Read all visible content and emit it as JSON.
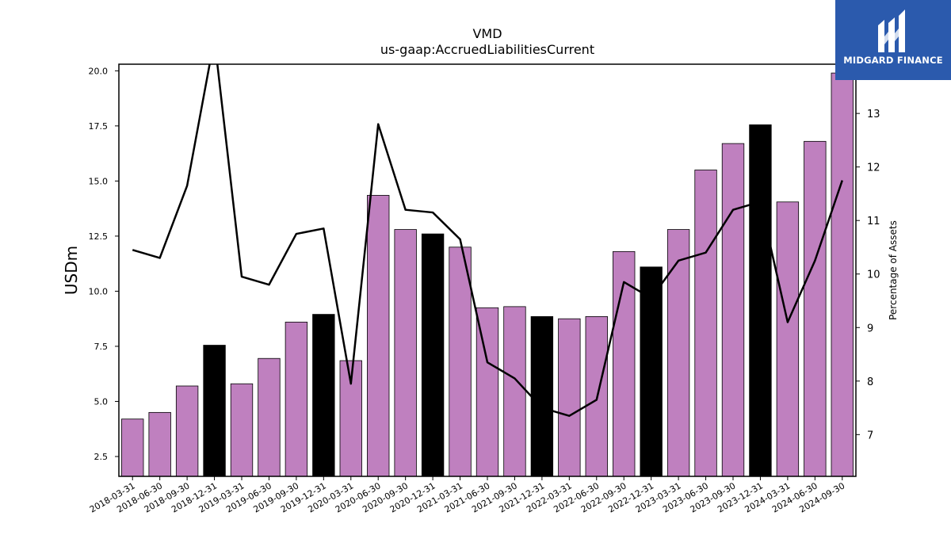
{
  "chart_data": {
    "type": "bar",
    "title": "VMD",
    "subtitle": "us-gaap:AccruedLiabilitiesCurrent",
    "ylabel": "USDm",
    "y2label": "Percentage of Assets",
    "categories": [
      "2018-03-31",
      "2018-06-30",
      "2018-09-30",
      "2018-12-31",
      "2019-03-31",
      "2019-06-30",
      "2019-09-30",
      "2019-12-31",
      "2020-03-31",
      "2020-06-30",
      "2020-09-30",
      "2020-12-31",
      "2021-03-31",
      "2021-06-30",
      "2021-09-30",
      "2021-12-31",
      "2022-03-31",
      "2022-06-30",
      "2022-09-30",
      "2022-12-31",
      "2023-03-31",
      "2023-06-30",
      "2023-09-30",
      "2023-12-31",
      "2024-03-31",
      "2024-06-30",
      "2024-09-30"
    ],
    "series": [
      {
        "type": "bar",
        "values": [
          4.2,
          4.5,
          5.7,
          7.55,
          5.8,
          6.95,
          8.6,
          8.95,
          6.85,
          14.35,
          12.8,
          12.6,
          12.0,
          9.25,
          9.3,
          8.85,
          8.75,
          8.85,
          11.8,
          11.1,
          12.8,
          15.5,
          16.7,
          17.55,
          14.05,
          16.8,
          19.9
        ]
      },
      {
        "type": "line",
        "axis": "right",
        "values": [
          10.45,
          10.3,
          11.65,
          14.4,
          9.95,
          9.8,
          10.75,
          10.85,
          7.95,
          12.8,
          11.2,
          11.15,
          10.65,
          8.35,
          8.05,
          7.5,
          7.35,
          7.65,
          9.85,
          9.55,
          10.25,
          10.4,
          11.2,
          11.35,
          9.1,
          10.25,
          11.75
        ]
      }
    ],
    "bar_colors": {
      "default": "#bf80bf",
      "year_end": "#000000"
    },
    "line_color": "#000000",
    "ylim": [
      1.6,
      20.3
    ],
    "y2lim": [
      6.22,
      13.92
    ],
    "yticks": [
      2.5,
      5.0,
      7.5,
      10.0,
      12.5,
      15.0,
      17.5,
      20.0
    ],
    "yticks_labels": [
      "2.5",
      "5.0",
      "7.5",
      "10.0",
      "12.5",
      "15.0",
      "17.5",
      "20.0"
    ],
    "y2ticks": [
      7,
      8,
      9,
      10,
      11,
      12,
      13
    ],
    "grid": false,
    "legend": "none"
  },
  "logo": {
    "text": "MIDGARD FINANCE",
    "background": "#2b5aad",
    "icon": "midgard-finance-logo-icon"
  }
}
